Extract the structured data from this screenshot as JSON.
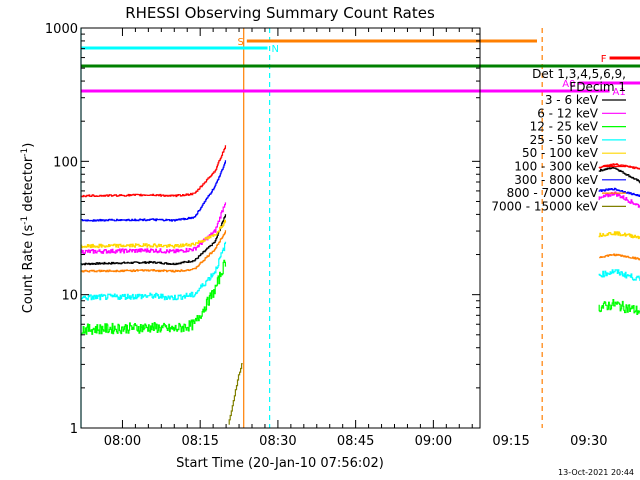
{
  "chart_data": {
    "type": "line",
    "title": "RHESSI Observing Summary Count Rates",
    "xlabel": "Start Time (20-Jan-10 07:56:02)",
    "ylabel_parts": [
      "Count Rate (s",
      "-1",
      " detector",
      "-1",
      ")"
    ],
    "ylim": [
      1,
      1000
    ],
    "yscale": "log",
    "xlim": [
      -4,
      34.5
    ],
    "x_unit": "minutes after 08:00 UT",
    "ytick_labels": [
      {
        "value": 1,
        "label": "1"
      },
      {
        "value": 10,
        "label": "10"
      },
      {
        "value": 100,
        "label": "100"
      },
      {
        "value": 1000,
        "label": "1000"
      }
    ],
    "xtick_labels": [
      {
        "value": 0,
        "label": "08:00"
      },
      {
        "value": 15,
        "label": "08:15"
      },
      {
        "value": 30,
        "label": "08:30"
      },
      {
        "value": 45,
        "label": "08:45"
      },
      {
        "value": 60,
        "label": "09:00"
      },
      {
        "value": 75,
        "label": "09:15"
      },
      {
        "value": 90,
        "label": "09:30"
      }
    ],
    "legend_header": [
      "Det 1,3,4,5,6,9,",
      "FDecim 1"
    ],
    "legend_position": "right",
    "series": [
      {
        "name": "3 - 6 keV",
        "color": "#000000",
        "segments": [
          {
            "x": [
              -4,
              3,
              5,
              7,
              9,
              10
            ],
            "y": [
              17,
              17.5,
              17,
              18,
              25,
              40
            ]
          },
          {
            "x": [
              46,
              47.5,
              50,
              52,
              56,
              62,
              68,
              72,
              74.5,
              77,
              82,
              86,
              88,
              90,
              92.5
            ],
            "y": [
              85,
              90,
              70,
              55,
              42,
              37,
              34,
              31,
              30,
              28,
              24,
              21,
              19,
              18,
              17
            ]
          }
        ]
      },
      {
        "name": "6 - 12 keV",
        "color": "#ff00ff",
        "segments": [
          {
            "x": [
              -4,
              3,
              5,
              7,
              9,
              10
            ],
            "y": [
              21,
              21.5,
              21,
              22,
              30,
              50
            ]
          },
          {
            "x": [
              46,
              47.5,
              50,
              52,
              56,
              62,
              68,
              72,
              74.5,
              77,
              82,
              86,
              88,
              90,
              92.5
            ],
            "y": [
              52,
              58,
              46,
              40,
              34,
              31,
              33,
              36,
              38,
              30,
              26,
              23,
              21,
              20,
              19
            ]
          }
        ]
      },
      {
        "name": "12 - 25 keV",
        "color": "#00ff00",
        "segments": [
          {
            "x": [
              -4,
              3,
              5,
              7,
              9,
              10
            ],
            "y": [
              5.5,
              5.7,
              5.5,
              6,
              11,
              18
            ]
          },
          {
            "x": [
              46,
              47.5,
              50,
              56,
              62,
              68,
              72,
              75,
              79,
              82,
              86,
              88,
              90,
              92.5
            ],
            "y": [
              8,
              8.5,
              7.5,
              7,
              6.8,
              7.5,
              8,
              7.5,
              7,
              6.8,
              6.5,
              6.2,
              6,
              5.5
            ]
          }
        ]
      },
      {
        "name": "25 - 50 keV",
        "color": "#00ffff",
        "segments": [
          {
            "x": [
              -4,
              3,
              5,
              7,
              9,
              10
            ],
            "y": [
              9.5,
              9.8,
              9.5,
              10,
              15,
              24
            ]
          },
          {
            "x": [
              46,
              47.5,
              50,
              56,
              62,
              66,
              70,
              74,
              78,
              82,
              86,
              88,
              90,
              92.5
            ],
            "y": [
              14,
              15,
              13,
              12,
              11.5,
              12.5,
              13,
              12,
              11,
              11,
              10.5,
              10,
              9.8,
              9.5
            ]
          }
        ]
      },
      {
        "name": "50 - 100 keV",
        "color": "#ffd700",
        "segments": [
          {
            "x": [
              -4,
              3,
              5,
              7,
              9,
              10
            ],
            "y": [
              23,
              23.5,
              23,
              24,
              28,
              36
            ]
          },
          {
            "x": [
              46,
              47.5,
              50,
              56,
              62,
              68,
              74,
              80,
              86,
              88,
              90,
              92.5
            ],
            "y": [
              28,
              29,
              27,
              25,
              24,
              24.5,
              25,
              26,
              24,
              23,
              22,
              22
            ]
          }
        ]
      },
      {
        "name": "100 - 300 keV",
        "color": "#ff0000",
        "segments": [
          {
            "x": [
              -4,
              3,
              5,
              7,
              9,
              10
            ],
            "y": [
              55,
              56,
              55,
              57,
              85,
              130
            ]
          },
          {
            "x": [
              46,
              47.5,
              50,
              56,
              62,
              68,
              74,
              80,
              85.5,
              86,
              88,
              90,
              92.5
            ],
            "y": [
              90,
              95,
              88,
              82,
              78,
              76,
              76,
              75,
              74,
              58,
              57,
              56,
              58
            ]
          }
        ]
      },
      {
        "name": "300 - 800 keV",
        "color": "#0000ff",
        "segments": [
          {
            "x": [
              -4,
              3,
              5,
              7,
              9,
              10
            ],
            "y": [
              36,
              36.5,
              36,
              38,
              65,
              100
            ]
          },
          {
            "x": [
              46,
              47.5,
              50,
              56,
              62,
              68,
              74,
              80,
              85.5,
              86,
              88,
              90,
              92.5
            ],
            "y": [
              60,
              62,
              55,
              50,
              48,
              47,
              46,
              45,
              44,
              34,
              33,
              34,
              36
            ]
          }
        ]
      },
      {
        "name": "800 - 7000 keV",
        "color": "#ff7f00",
        "segments": [
          {
            "x": [
              -4,
              3,
              5,
              7,
              9,
              10
            ],
            "y": [
              15,
              15.2,
              15,
              15.5,
              22,
              30
            ]
          },
          {
            "x": [
              46,
              47.5,
              50,
              56,
              62,
              68,
              74,
              80,
              86,
              88,
              90,
              92.5
            ],
            "y": [
              19,
              20,
              18.5,
              18,
              17.5,
              17.5,
              17.5,
              17.5,
              17,
              16.5,
              16,
              16
            ]
          }
        ]
      },
      {
        "name": "7000 - 15000 keV",
        "color": "#808000",
        "segments": [
          {
            "x": [
              10.3,
              10.8,
              11.3,
              11.6
            ],
            "y": [
              1.05,
              1.6,
              2.5,
              3
            ]
          }
        ]
      }
    ],
    "flag_bars": [
      {
        "label": "S",
        "color": "#ff7f00",
        "x_start": 12,
        "x_end": 40
      },
      {
        "label": "N",
        "color": "#00ffff",
        "x_start": -4,
        "x_end": 14
      },
      {
        "label": "N",
        "color": "#00ffff",
        "x_start": 74,
        "x_end": 92.5,
        "show_label": false
      },
      {
        "label": "F",
        "color": "#ff0000",
        "x_start": 47,
        "x_end": 52
      },
      {
        "label": "RD9",
        "color": "#008000",
        "x_start": -4,
        "x_end": 92.5
      },
      {
        "label": "RD4",
        "color": "#008000",
        "x_start": 86.5,
        "x_end": 90
      },
      {
        "label": "A0",
        "color": "#ff00ff",
        "x_start": 44,
        "x_end": 92.5
      },
      {
        "label": "A1",
        "color": "#ff00ff",
        "x_start": -4,
        "x_end": 47
      }
    ],
    "vertical_markers": [
      {
        "x": 11.7,
        "color": "#ff7f00",
        "style": "solid"
      },
      {
        "x": 40.5,
        "color": "#ff7f00",
        "style": "dashed"
      },
      {
        "x": 14.2,
        "color": "#00ffff",
        "style": "dashed"
      },
      {
        "x": 74.2,
        "color": "#00ffff",
        "style": "solid"
      },
      {
        "x": 92.3,
        "color": "#00ffff",
        "style": "dashed"
      },
      {
        "x": -4,
        "color": "#00ffff",
        "style": "solid"
      }
    ],
    "footer_date": "13-Oct-2021 20:44",
    "background": "#ffffff",
    "axis_color": "#000000"
  }
}
